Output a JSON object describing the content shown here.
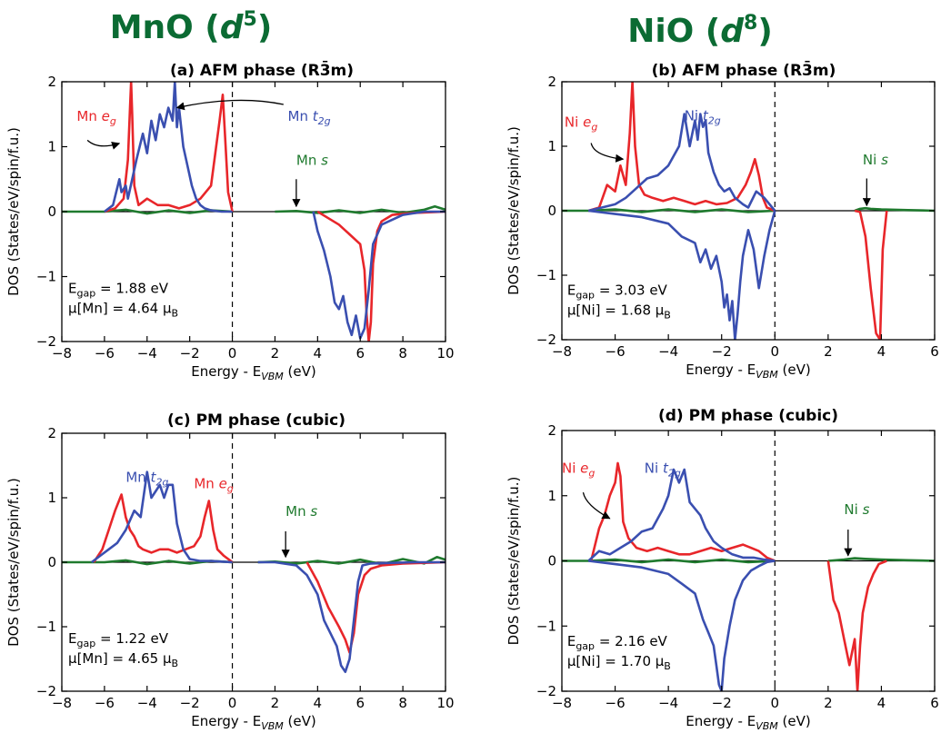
{
  "figure": {
    "column_titles": [
      {
        "base": "MnO (",
        "ital": "d",
        "sup": "5",
        "close": ")"
      },
      {
        "base": "NiO (",
        "ital": "d",
        "sup": "8",
        "close": ")"
      }
    ],
    "colors": {
      "t2g": "#3a4fb0",
      "eg": "#e8262a",
      "s": "#1f7a2e",
      "title": "#0b6b33"
    }
  },
  "chart_data": [
    {
      "id": "a",
      "type": "line",
      "title": "(a) AFM phase (R3̄m)",
      "xlabel": "Energy - E_VBM (eV)",
      "ylabel": "DOS (States/eV/spin/f.u.)",
      "xlim": [
        -8,
        10
      ],
      "ylim": [
        -2,
        2
      ],
      "xticks": [
        "−8",
        "−6",
        "−4",
        "−2",
        "0",
        "2",
        "4",
        "6",
        "8",
        "10"
      ],
      "yticks": [
        "2",
        "1",
        "0",
        "−1",
        "−2"
      ],
      "vbm_line_x": 0,
      "info": {
        "egap": "= 1.88 eV",
        "mu": "μ[Mn] = 4.64 μ"
      },
      "labels": {
        "t2g": "Mn t2g",
        "eg": "Mn eg",
        "s": "Mn s"
      },
      "series": [
        {
          "name": "Mn t2g",
          "color": "#3a4fb0",
          "x": [
            -6.0,
            -5.6,
            -5.3,
            -5.2,
            -5.0,
            -4.9,
            -4.7,
            -4.5,
            -4.2,
            -4.0,
            -3.8,
            -3.6,
            -3.4,
            -3.2,
            -3.0,
            -2.8,
            -2.7,
            -2.6,
            -2.5,
            -2.3,
            -2.1,
            -1.9,
            -1.7,
            -1.5,
            -1.3,
            -1.0,
            -0.5,
            0.0,
            null,
            3.8,
            4.0,
            4.3,
            4.6,
            4.8,
            5.0,
            5.2,
            5.4,
            5.6,
            5.8,
            6.0,
            6.2,
            6.4,
            6.6,
            7.0,
            8.0,
            9.0,
            10.0
          ],
          "y": [
            0.0,
            0.1,
            0.5,
            0.3,
            0.4,
            0.2,
            0.5,
            0.8,
            1.2,
            0.9,
            1.4,
            1.1,
            1.5,
            1.3,
            1.6,
            1.4,
            2.0,
            1.3,
            1.6,
            1.0,
            0.7,
            0.4,
            0.2,
            0.1,
            0.05,
            0.02,
            0.0,
            0.0,
            null,
            0.0,
            -0.3,
            -0.6,
            -1.0,
            -1.4,
            -1.5,
            -1.3,
            -1.7,
            -1.9,
            -1.6,
            -1.95,
            -1.8,
            -1.2,
            -0.5,
            -0.2,
            -0.05,
            0.0,
            0.0
          ]
        },
        {
          "name": "Mn eg",
          "color": "#e8262a",
          "x": [
            -6.0,
            -5.5,
            -5.1,
            -4.9,
            -4.8,
            -4.75,
            -4.7,
            -4.6,
            -4.4,
            -4.2,
            -4.0,
            -3.5,
            -3.0,
            -2.5,
            -2.0,
            -1.5,
            -1.0,
            -0.8,
            -0.6,
            -0.45,
            -0.35,
            -0.2,
            0.0,
            null,
            4.0,
            4.5,
            5.0,
            5.5,
            6.0,
            6.2,
            6.3,
            6.4,
            6.5,
            6.6,
            6.8,
            7.0,
            7.5,
            8.5,
            10.0
          ],
          "y": [
            0.0,
            0.05,
            0.2,
            0.8,
            1.6,
            2.0,
            1.5,
            0.4,
            0.1,
            0.15,
            0.2,
            0.1,
            0.1,
            0.05,
            0.1,
            0.2,
            0.4,
            0.9,
            1.4,
            1.8,
            1.2,
            0.3,
            0.0,
            null,
            0.0,
            -0.1,
            -0.2,
            -0.35,
            -0.5,
            -0.9,
            -1.6,
            -2.0,
            -1.7,
            -0.8,
            -0.3,
            -0.15,
            -0.05,
            -0.02,
            0.0
          ]
        },
        {
          "name": "Mn s",
          "color": "#1f7a2e",
          "x": [
            -8,
            -6,
            -5,
            -4,
            -3,
            -2,
            -1,
            0,
            null,
            2,
            3,
            4,
            5,
            6,
            7,
            8,
            9,
            9.5,
            10
          ],
          "y": [
            0,
            0.0,
            0.03,
            -0.03,
            0.02,
            -0.02,
            0.02,
            0.0,
            null,
            0.0,
            0.01,
            -0.02,
            0.02,
            -0.02,
            0.03,
            -0.02,
            0.03,
            0.08,
            0.03
          ]
        }
      ],
      "arrows": [
        "eg",
        "t2g",
        "s"
      ]
    },
    {
      "id": "b",
      "type": "line",
      "title": "(b) AFM phase (R3̄m)",
      "xlabel": "Energy - E_VBM (eV)",
      "ylabel": "DOS (States/eV/spin/f.u.)",
      "xlim": [
        -8,
        6
      ],
      "ylim": [
        -2,
        2
      ],
      "xticks": [
        "−8",
        "−6",
        "−4",
        "−2",
        "0",
        "2",
        "4",
        "6"
      ],
      "yticks": [
        "2",
        "1",
        "0",
        "−1",
        "−2"
      ],
      "vbm_line_x": 0,
      "info": {
        "egap": "= 3.03 eV",
        "mu": "μ[Ni] = 1.68 μ"
      },
      "labels": {
        "t2g": "Ni t2g",
        "eg": "Ni eg",
        "s": "Ni s"
      },
      "series": [
        {
          "name": "Ni t2g",
          "color": "#3a4fb0",
          "x": [
            -7.0,
            -6.5,
            -6.0,
            -5.6,
            -5.2,
            -4.8,
            -4.4,
            -4.0,
            -3.6,
            -3.4,
            -3.2,
            -3.0,
            -2.9,
            -2.8,
            -2.7,
            -2.6,
            -2.5,
            -2.3,
            -2.1,
            -1.9,
            -1.7,
            -1.5,
            -1.2,
            -1.0,
            -0.7,
            -0.4,
            0.0
          ],
          "y": [
            0.0,
            0.05,
            0.1,
            0.2,
            0.35,
            0.5,
            0.55,
            0.7,
            1.0,
            1.5,
            1.0,
            1.4,
            1.1,
            1.5,
            1.3,
            1.4,
            0.9,
            0.6,
            0.4,
            0.3,
            0.35,
            0.2,
            0.1,
            0.05,
            0.3,
            0.2,
            0.0
          ]
        },
        {
          "name": "Ni t2g down",
          "color": "#3a4fb0",
          "x": [
            -7.0,
            -6.0,
            -5.0,
            -4.0,
            -3.5,
            -3.0,
            -2.8,
            -2.6,
            -2.4,
            -2.2,
            -2.0,
            -1.9,
            -1.8,
            -1.7,
            -1.6,
            -1.5,
            -1.4,
            -1.3,
            -1.2,
            -1.0,
            -0.8,
            -0.6,
            -0.4,
            -0.2,
            0.0
          ],
          "y": [
            0.0,
            -0.05,
            -0.1,
            -0.2,
            -0.4,
            -0.5,
            -0.8,
            -0.6,
            -0.9,
            -0.7,
            -1.1,
            -1.5,
            -1.3,
            -1.7,
            -1.4,
            -2.0,
            -1.6,
            -1.1,
            -0.7,
            -0.3,
            -0.6,
            -1.2,
            -0.7,
            -0.3,
            0.0
          ]
        },
        {
          "name": "Ni eg",
          "color": "#e8262a",
          "x": [
            -7.0,
            -6.6,
            -6.3,
            -6.0,
            -5.8,
            -5.6,
            -5.45,
            -5.35,
            -5.25,
            -5.1,
            -4.9,
            -4.6,
            -4.2,
            -3.8,
            -3.4,
            -3.0,
            -2.6,
            -2.2,
            -1.8,
            -1.4,
            -1.1,
            -0.9,
            -0.75,
            -0.6,
            -0.45,
            -0.3,
            0.0,
            null,
            3.0,
            3.2,
            3.4,
            3.6,
            3.8,
            3.95,
            4.05,
            4.2
          ],
          "y": [
            0.0,
            0.05,
            0.4,
            0.3,
            0.7,
            0.4,
            1.2,
            2.0,
            1.0,
            0.4,
            0.25,
            0.2,
            0.15,
            0.2,
            0.15,
            0.1,
            0.15,
            0.1,
            0.12,
            0.2,
            0.4,
            0.6,
            0.8,
            0.55,
            0.2,
            0.05,
            0.0,
            null,
            0.0,
            -0.02,
            -0.4,
            -1.2,
            -1.9,
            -2.0,
            -0.6,
            0.0
          ]
        },
        {
          "name": "Ni s",
          "color": "#1f7a2e",
          "x": [
            -8,
            -7,
            -6,
            -5,
            -4,
            -3,
            -2,
            -1,
            0,
            null,
            3.0,
            3.2,
            3.4,
            3.6,
            4.0,
            5.0,
            6.0
          ],
          "y": [
            0,
            0.0,
            0.02,
            -0.02,
            0.02,
            -0.02,
            0.02,
            -0.02,
            0.0,
            null,
            0.0,
            0.03,
            0.04,
            0.03,
            0.02,
            0.01,
            0.0
          ]
        }
      ],
      "arrows": [
        "eg",
        "s"
      ]
    },
    {
      "id": "c",
      "type": "line",
      "title": "(c) PM phase (cubic)",
      "xlabel": "Energy - E_VBM (eV)",
      "ylabel": "DOS (States/eV/spin/f.u.)",
      "xlim": [
        -8,
        10
      ],
      "ylim": [
        -2,
        2
      ],
      "xticks": [
        "−8",
        "−6",
        "−4",
        "−2",
        "0",
        "2",
        "4",
        "6",
        "8",
        "10"
      ],
      "yticks": [
        "2",
        "1",
        "0",
        "−1",
        "−2"
      ],
      "vbm_line_x": 0,
      "info": {
        "egap": "= 1.22 eV",
        "mu": "μ[Mn] = 4.65 μ"
      },
      "labels": {
        "t2g": "Mn t2g",
        "eg": "Mn eg",
        "s": "Mn s"
      },
      "series": [
        {
          "name": "Mn t2g",
          "color": "#3a4fb0",
          "x": [
            -6.6,
            -6.2,
            -5.8,
            -5.4,
            -5.0,
            -4.6,
            -4.3,
            -4.0,
            -3.8,
            -3.6,
            -3.4,
            -3.2,
            -3.0,
            -2.8,
            -2.6,
            -2.3,
            -2.0,
            -1.5,
            -1.0,
            -0.5,
            0.0,
            null,
            1.2,
            2.0,
            3.0,
            3.5,
            4.0,
            4.3,
            4.6,
            4.9,
            5.1,
            5.3,
            5.5,
            5.7,
            5.9,
            6.1,
            6.5,
            7.5,
            8.5,
            10.0
          ],
          "y": [
            0.0,
            0.1,
            0.2,
            0.3,
            0.5,
            0.8,
            0.7,
            1.4,
            1.0,
            1.1,
            1.2,
            1.0,
            1.2,
            1.2,
            0.6,
            0.2,
            0.05,
            0.02,
            0.02,
            0.01,
            0.0,
            null,
            0.0,
            0.0,
            -0.05,
            -0.2,
            -0.5,
            -0.9,
            -1.1,
            -1.3,
            -1.6,
            -1.7,
            -1.5,
            -0.9,
            -0.3,
            -0.05,
            -0.02,
            -0.01,
            0.0,
            0.0
          ]
        },
        {
          "name": "Mn eg",
          "color": "#e8262a",
          "x": [
            -6.5,
            -6.1,
            -5.8,
            -5.5,
            -5.2,
            -5.0,
            -4.8,
            -4.6,
            -4.4,
            -4.2,
            -3.8,
            -3.4,
            -3.0,
            -2.6,
            -2.2,
            -1.8,
            -1.5,
            -1.3,
            -1.1,
            -0.9,
            -0.7,
            -0.4,
            0.0,
            null,
            3.5,
            4.0,
            4.5,
            5.0,
            5.3,
            5.5,
            5.7,
            5.9,
            6.2,
            6.5,
            7.0,
            8.0,
            10.0
          ],
          "y": [
            0.0,
            0.2,
            0.5,
            0.8,
            1.05,
            0.7,
            0.5,
            0.4,
            0.25,
            0.2,
            0.15,
            0.2,
            0.2,
            0.15,
            0.2,
            0.25,
            0.4,
            0.7,
            0.95,
            0.5,
            0.2,
            0.1,
            0.0,
            null,
            0.0,
            -0.3,
            -0.7,
            -1.0,
            -1.2,
            -1.4,
            -1.1,
            -0.5,
            -0.2,
            -0.1,
            -0.05,
            -0.02,
            0.0
          ]
        },
        {
          "name": "Mn s",
          "color": "#1f7a2e",
          "x": [
            -8,
            -6,
            -5,
            -4,
            -3,
            -2,
            -1,
            0,
            null,
            1.2,
            2,
            3,
            4,
            5,
            6,
            7,
            8,
            9,
            9.6,
            10
          ],
          "y": [
            0,
            0.0,
            0.03,
            -0.03,
            0.02,
            -0.02,
            0.02,
            0.0,
            null,
            0.0,
            0.01,
            -0.02,
            0.02,
            -0.02,
            0.04,
            -0.03,
            0.05,
            -0.02,
            0.08,
            0.04
          ]
        }
      ],
      "arrows": [
        "s"
      ]
    },
    {
      "id": "d",
      "type": "line",
      "title": "(d) PM phase (cubic)",
      "xlabel": "Energy - E_VBM (eV)",
      "ylabel": "DOS (States/eV/spin/f.u.)",
      "xlim": [
        -8,
        6
      ],
      "ylim": [
        -2,
        2
      ],
      "xticks": [
        "−8",
        "−6",
        "−4",
        "−2",
        "0",
        "2",
        "4",
        "6"
      ],
      "yticks": [
        "2",
        "1",
        "0",
        "−1",
        "−2"
      ],
      "vbm_line_x": 0,
      "info": {
        "egap": "= 2.16 eV",
        "mu": "μ[Ni] = 1.70 μ"
      },
      "labels": {
        "t2g": "Ni t2g",
        "eg": "Ni eg",
        "s": "Ni s"
      },
      "series": [
        {
          "name": "Ni t2g",
          "color": "#3a4fb0",
          "x": [
            -7.0,
            -6.6,
            -6.2,
            -5.8,
            -5.4,
            -5.0,
            -4.6,
            -4.2,
            -4.0,
            -3.8,
            -3.6,
            -3.4,
            -3.2,
            -3.0,
            -2.8,
            -2.6,
            -2.3,
            -2.0,
            -1.6,
            -1.2,
            -0.8,
            -0.4,
            0.0
          ],
          "y": [
            0.0,
            0.15,
            0.1,
            0.2,
            0.3,
            0.45,
            0.5,
            0.8,
            1.0,
            1.4,
            1.2,
            1.4,
            0.9,
            0.8,
            0.7,
            0.5,
            0.3,
            0.2,
            0.1,
            0.05,
            0.05,
            0.02,
            0.0
          ]
        },
        {
          "name": "Ni t2g down",
          "color": "#3a4fb0",
          "x": [
            -7.0,
            -6.0,
            -5.0,
            -4.0,
            -3.5,
            -3.0,
            -2.7,
            -2.5,
            -2.3,
            -2.2,
            -2.1,
            -2.0,
            -1.9,
            -1.7,
            -1.5,
            -1.2,
            -0.9,
            -0.6,
            -0.3,
            0.0
          ],
          "y": [
            0.0,
            -0.05,
            -0.1,
            -0.2,
            -0.35,
            -0.5,
            -0.9,
            -1.1,
            -1.3,
            -1.6,
            -1.9,
            -2.0,
            -1.5,
            -1.0,
            -0.6,
            -0.3,
            -0.15,
            -0.08,
            -0.02,
            0.0
          ]
        },
        {
          "name": "Ni eg",
          "color": "#e8262a",
          "x": [
            -6.9,
            -6.6,
            -6.4,
            -6.2,
            -6.0,
            -5.9,
            -5.8,
            -5.7,
            -5.5,
            -5.2,
            -4.8,
            -4.4,
            -4.0,
            -3.6,
            -3.2,
            -2.8,
            -2.4,
            -2.0,
            -1.6,
            -1.2,
            -0.9,
            -0.6,
            -0.3,
            0.0,
            null,
            2.0,
            2.2,
            2.4,
            2.6,
            2.8,
            3.0,
            3.1,
            3.2,
            3.3,
            3.5,
            3.7,
            3.9,
            4.2
          ],
          "y": [
            0.0,
            0.5,
            0.7,
            1.0,
            1.2,
            1.5,
            1.3,
            0.6,
            0.35,
            0.2,
            0.15,
            0.2,
            0.15,
            0.1,
            0.1,
            0.15,
            0.2,
            0.15,
            0.2,
            0.25,
            0.2,
            0.15,
            0.05,
            0.0,
            null,
            0.0,
            -0.6,
            -0.8,
            -1.2,
            -1.6,
            -1.2,
            -2.0,
            -1.3,
            -0.8,
            -0.4,
            -0.2,
            -0.05,
            0.0
          ]
        },
        {
          "name": "Ni s",
          "color": "#1f7a2e",
          "x": [
            -8,
            -7,
            -6,
            -5,
            -4,
            -3,
            -2,
            -1,
            0,
            null,
            2.0,
            2.6,
            3.0,
            3.4,
            4.0,
            5.0,
            6.0
          ],
          "y": [
            0,
            0.0,
            0.02,
            -0.02,
            0.02,
            -0.02,
            0.02,
            -0.02,
            0.0,
            null,
            0.0,
            0.02,
            0.04,
            0.03,
            0.02,
            0.01,
            0.0
          ]
        }
      ],
      "arrows": [
        "eg",
        "s"
      ]
    }
  ]
}
